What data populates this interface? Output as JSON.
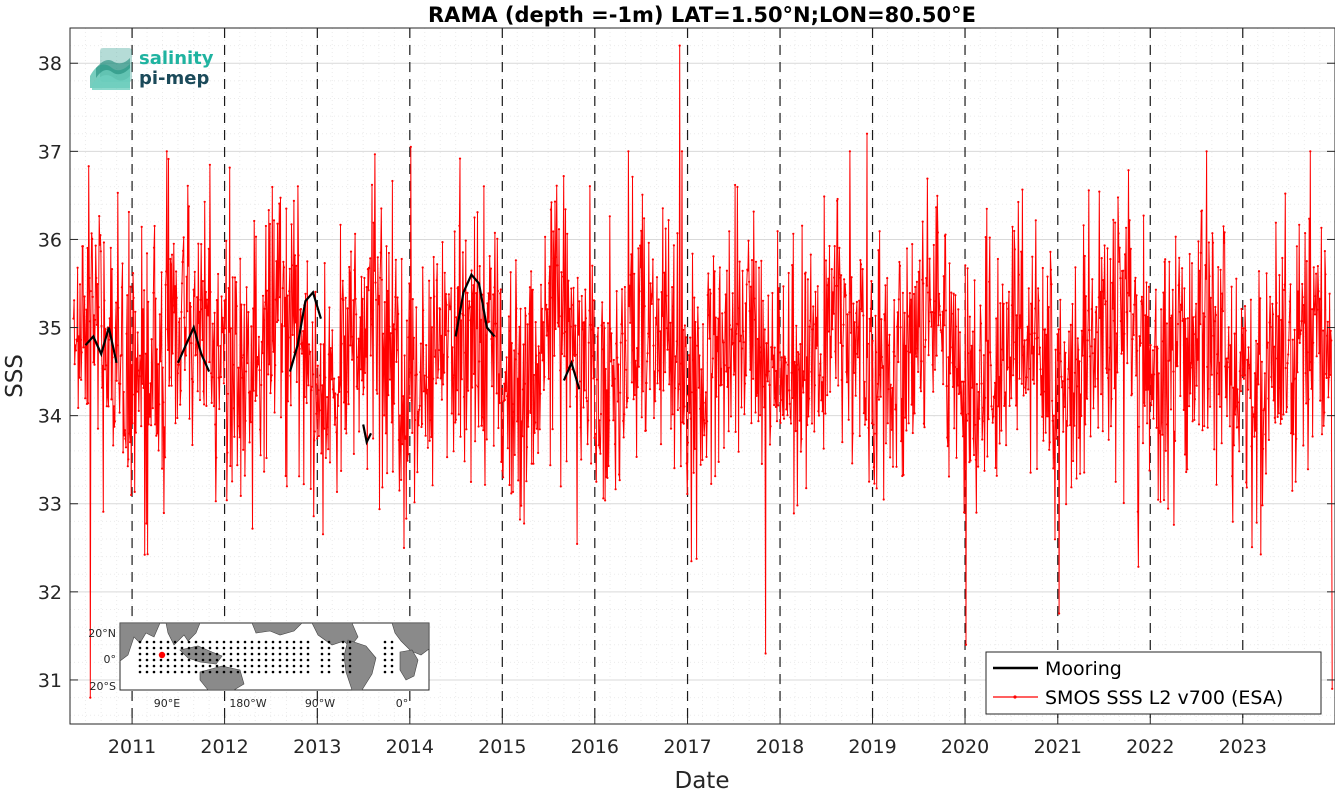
{
  "chart_data": {
    "type": "line",
    "title": "RAMA (depth =-1m) LAT=1.50°N;LON=80.50°E",
    "xlabel": "Date",
    "ylabel": "SSS",
    "xlim": [
      "2010-05-01",
      "2023-12-31"
    ],
    "ylim": [
      30.5,
      38.4
    ],
    "x_ticks": [
      "2011",
      "2012",
      "2013",
      "2014",
      "2015",
      "2016",
      "2017",
      "2018",
      "2019",
      "2020",
      "2021",
      "2022",
      "2023"
    ],
    "y_ticks": [
      "31",
      "32",
      "33",
      "34",
      "35",
      "36",
      "37",
      "38"
    ],
    "grid": true,
    "year_boundaries": [
      "2011-01-01",
      "2012-01-01",
      "2013-01-01",
      "2014-01-01",
      "2015-01-01",
      "2016-01-01",
      "2017-01-01",
      "2018-01-01",
      "2019-01-01",
      "2020-01-01",
      "2021-01-01",
      "2022-01-01",
      "2023-01-01"
    ],
    "legend_position": "bottom-right",
    "series": [
      {
        "name": "Mooring",
        "color": "#000000",
        "segments": [
          {
            "x": [
              "2010-07-01",
              "2010-08-01",
              "2010-09-01",
              "2010-10-01",
              "2010-11-01"
            ],
            "y": [
              34.8,
              34.9,
              34.7,
              35.0,
              34.6
            ]
          },
          {
            "x": [
              "2011-07-01",
              "2011-08-01",
              "2011-09-01",
              "2011-10-01",
              "2011-11-01"
            ],
            "y": [
              34.6,
              34.8,
              35.0,
              34.7,
              34.5
            ]
          },
          {
            "x": [
              "2012-09-15",
              "2012-10-15",
              "2012-11-15",
              "2012-12-15",
              "2013-01-15"
            ],
            "y": [
              34.5,
              34.8,
              35.3,
              35.4,
              35.1
            ]
          },
          {
            "x": [
              "2013-07-01",
              "2013-07-15",
              "2013-08-01"
            ],
            "y": [
              33.9,
              33.7,
              33.8
            ]
          },
          {
            "x": [
              "2014-07-01",
              "2014-08-01",
              "2014-09-01",
              "2014-10-01",
              "2014-11-01",
              "2014-12-01"
            ],
            "y": [
              34.9,
              35.4,
              35.6,
              35.5,
              35.0,
              34.9
            ]
          },
          {
            "x": [
              "2015-09-01",
              "2015-10-01",
              "2015-11-01"
            ],
            "y": [
              34.4,
              34.6,
              34.3
            ]
          }
        ]
      },
      {
        "name": "SMOS SSS L2 v700 (ESA)",
        "color": "#ff0000",
        "x_start": "2010-05-15",
        "x_end": "2023-12-20",
        "notable_points": [
          {
            "x": "2010-07-20",
            "y": 30.8
          },
          {
            "x": "2014-01-05",
            "y": 37.05
          },
          {
            "x": "2016-12-01",
            "y": 38.2
          },
          {
            "x": "2017-11-05",
            "y": 31.3
          },
          {
            "x": "2018-12-10",
            "y": 37.2
          },
          {
            "x": "2020-01-05",
            "y": 31.4
          },
          {
            "x": "2023-12-20",
            "y": 30.9
          }
        ],
        "mean_y": 34.7,
        "std_y": 0.75
      }
    ]
  },
  "logo": {
    "line1": "salinity",
    "line2": "pi-mep"
  },
  "inset_map": {
    "y_ticks": [
      "20°N",
      "0°",
      "20°S"
    ],
    "x_ticks": [
      "90°E",
      "180°W",
      "90°W",
      "0°"
    ],
    "highlight_color": "#ff0000"
  },
  "legend": {
    "items": [
      {
        "label": "Mooring",
        "color": "#000000"
      },
      {
        "label": "SMOS SSS L2 v700 (ESA)",
        "color": "#ff0000"
      }
    ]
  }
}
